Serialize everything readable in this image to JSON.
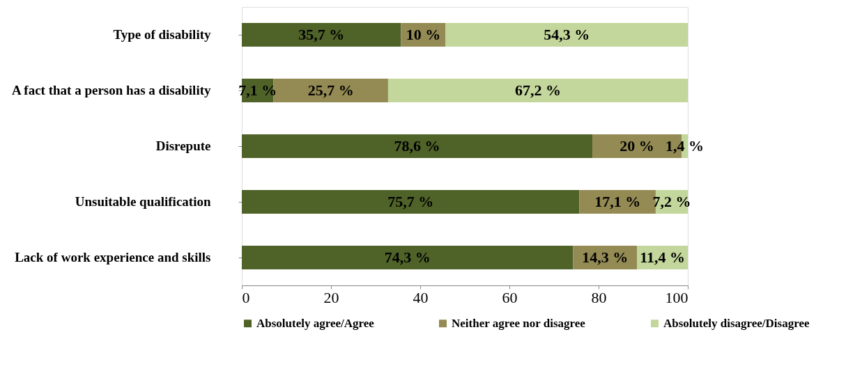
{
  "chart_data": {
    "type": "bar",
    "orientation": "horizontal",
    "stacked": true,
    "categories": [
      "Type of disability",
      "A fact that  a person has a disability",
      "Disrepute",
      "Unsuitable qualification",
      "Lack of work experience and skills"
    ],
    "series": [
      {
        "name": "Absolutely agree/Agree",
        "color": "#4f6228",
        "values": [
          35.7,
          7.1,
          78.6,
          75.7,
          74.3
        ],
        "value_labels": [
          "35,7 %",
          "7,1 %",
          "78,6 %",
          "75,7 %",
          "74,3 %"
        ]
      },
      {
        "name": "Neither agree nor disagree",
        "color": "#948a54",
        "values": [
          10,
          25.7,
          20,
          17.1,
          14.3
        ],
        "value_labels": [
          "10 %",
          "25,7 %",
          "20 %",
          "17,1 %",
          "14,3 %"
        ]
      },
      {
        "name": "Absolutely disagree/Disagree",
        "color": "#c3d69b",
        "values": [
          54.3,
          67.2,
          1.4,
          7.2,
          11.4
        ],
        "value_labels": [
          "54,3 %",
          "67,2 %",
          "1,4 %",
          "7,2 %",
          "11,4 %"
        ]
      }
    ],
    "xlim": [
      0,
      100
    ],
    "xticks": [
      0,
      20,
      40,
      60,
      80,
      100
    ],
    "grid": false,
    "legend": "bottom"
  }
}
